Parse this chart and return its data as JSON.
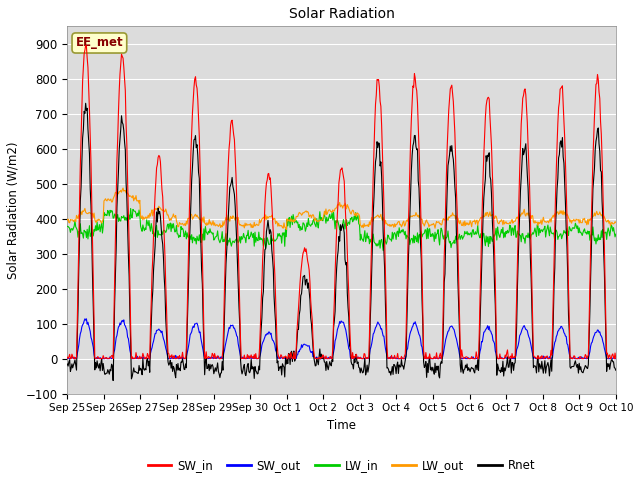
{
  "title": "Solar Radiation",
  "ylabel": "Solar Radiation (W/m2)",
  "xlabel": "Time",
  "ylim": [
    -100,
    950
  ],
  "n_days": 15,
  "xtick_labels": [
    "Sep 25",
    "Sep 26",
    "Sep 27",
    "Sep 28",
    "Sep 29",
    "Sep 30",
    "Oct 1",
    "Oct 2",
    "Oct 3",
    "Oct 4",
    "Oct 5",
    "Oct 6",
    "Oct 7",
    "Oct 8",
    "Oct 9",
    "Oct 10"
  ],
  "plot_bg_color": "#dcdcdc",
  "fig_bg_color": "#ffffff",
  "annotation_text": "EE_met",
  "annotation_color": "#880000",
  "annotation_bg": "#ffffcc",
  "annotation_edge": "#999933",
  "colors": {
    "SW_in": "#ff0000",
    "SW_out": "#0000ff",
    "LW_in": "#00cc00",
    "LW_out": "#ff9900",
    "Rnet": "#000000"
  },
  "legend_labels": [
    "SW_in",
    "SW_out",
    "LW_in",
    "LW_out",
    "Rnet"
  ],
  "sw_in_peaks": [
    900,
    870,
    580,
    800,
    680,
    530,
    320,
    550,
    800,
    810,
    780,
    750,
    770,
    780,
    800
  ],
  "sw_out_peaks": [
    110,
    110,
    85,
    100,
    95,
    75,
    40,
    105,
    100,
    100,
    90,
    90,
    90,
    90,
    80
  ],
  "lw_in_daily": [
    370,
    410,
    375,
    355,
    340,
    345,
    390,
    395,
    340,
    355,
    350,
    355,
    360,
    365,
    360
  ],
  "lw_out_daily": [
    400,
    460,
    410,
    390,
    385,
    385,
    400,
    420,
    385,
    390,
    390,
    395,
    395,
    400,
    395
  ]
}
